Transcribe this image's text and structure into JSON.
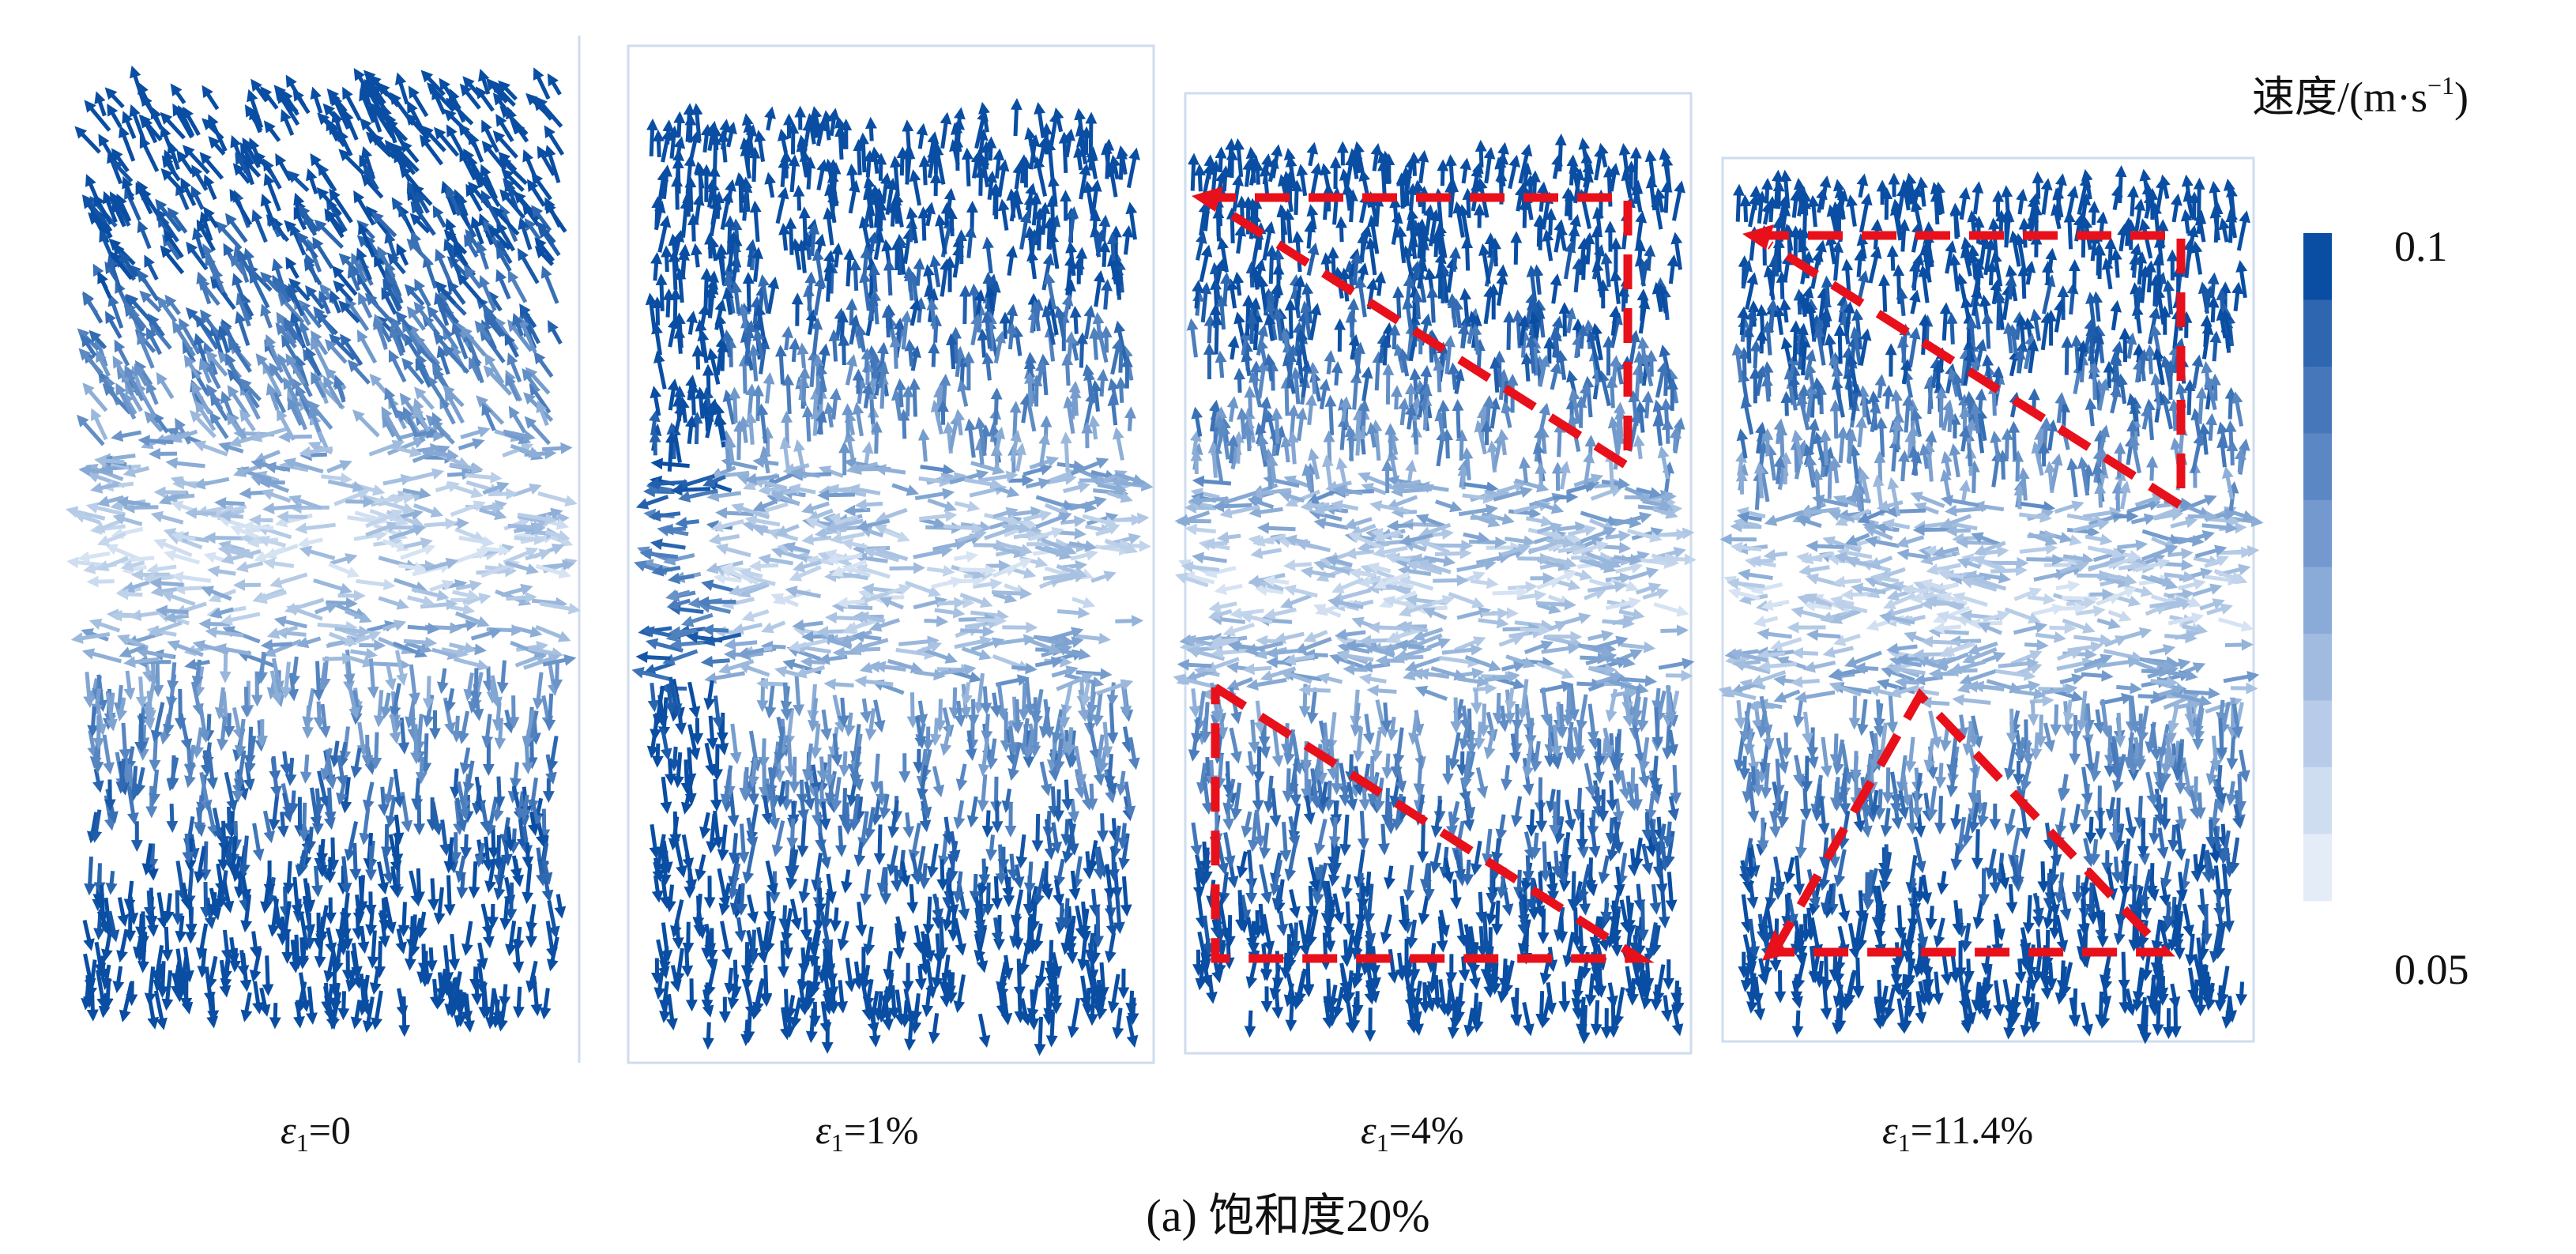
{
  "panels": [
    {
      "subscript": "1",
      "value": "=0",
      "dashed_zones": false
    },
    {
      "subscript": "1",
      "value": "=1%",
      "dashed_zones": false
    },
    {
      "subscript": "1",
      "value": "=4%",
      "dashed_zones": true
    },
    {
      "subscript": "1",
      "value": "=11.4%",
      "dashed_zones": true
    }
  ],
  "strain_symbol": "ε",
  "caption": "(a) 饱和度20%",
  "legend": {
    "title_text": "速度/(m·s",
    "title_exponent": "−1",
    "title_close": ")",
    "max_label": "0.1",
    "min_label": "0.05",
    "colors": [
      "#0a4ea3",
      "#2f66b0",
      "#4677ba",
      "#5b88c4",
      "#7399ce",
      "#8aaad7",
      "#a1bbe0",
      "#b8cce9",
      "#cfddf1",
      "#e4ecf7"
    ]
  },
  "colors": {
    "arrow_fast": "#0a4ea3",
    "arrow_slow": "#d6e3f3",
    "dashed_line": "#e8101a",
    "frame": "#cfdcee"
  }
}
